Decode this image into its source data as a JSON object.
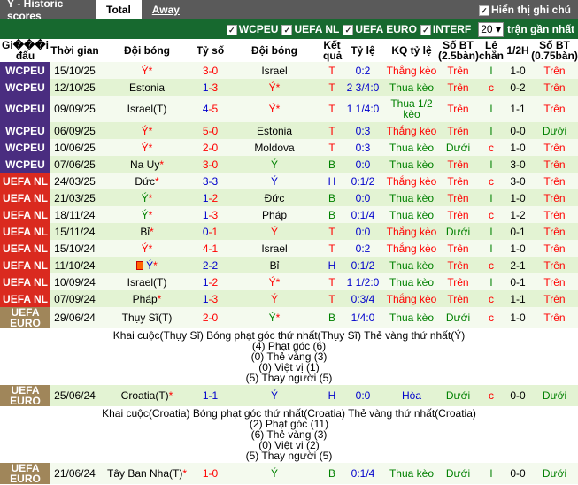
{
  "header": {
    "title": "Ý - Historic scores",
    "tabs": [
      "Total",
      "Away"
    ],
    "show_notes": "Hiển thị ghi chú"
  },
  "filters": {
    "leagues": [
      "WCPEU",
      "UEFA NL",
      "UEFA EURO",
      "INTERF"
    ],
    "count": "20",
    "count_suffix": "trận gần nhất"
  },
  "columns": [
    "Gi���i đấu",
    "Thời gian",
    "Đội bóng",
    "Tỷ số",
    "Đội bóng",
    "Kết quả",
    "Tỷ lệ",
    "KQ tỷ lệ",
    "Số BT (2.5bàn)",
    "Lẻ chẵn",
    "1/2H",
    "Số BT (0.75bàn)"
  ],
  "league_colors": {
    "WCPEU": "#4a2d80",
    "UEFA NL": "#da2a1f",
    "UEFA EURO": "#a0865a"
  },
  "rows": [
    {
      "lg": "WCPEU",
      "date": "15/10/25",
      "home": "Ý",
      "hs": "*",
      "hc": "red",
      "sh": "3",
      "sa": "0",
      "shc": "red",
      "sac": "red",
      "away": "Israel",
      "as": "",
      "ac": "blk",
      "res": "T",
      "hcp": "0:2",
      "kq": "Thắng kèo",
      "bt": "Trên",
      "lc": "l",
      "h1": "1-0",
      "bt2": "Trên"
    },
    {
      "lg": "WCPEU",
      "date": "12/10/25",
      "home": "Estonia",
      "hs": "",
      "hc": "blk",
      "sh": "1",
      "sa": "3",
      "shc": "blue",
      "sac": "red",
      "away": "Ý",
      "as": "*",
      "ac": "red",
      "res": "T",
      "hcp": "2 3/4:0",
      "kq": "Thua kèo",
      "bt": "Trên",
      "lc": "c",
      "h1": "0-2",
      "bt2": "Trên"
    },
    {
      "lg": "WCPEU",
      "date": "09/09/25",
      "home": "Israel(T)",
      "hs": "",
      "hc": "blk",
      "sh": "4",
      "sa": "5",
      "shc": "blue",
      "sac": "red",
      "away": "Ý",
      "as": "*",
      "ac": "red",
      "res": "T",
      "hcp": "1 1/4:0",
      "kq": "Thua 1/2 kèo",
      "bt": "Trên",
      "lc": "l",
      "h1": "1-1",
      "bt2": "Trên"
    },
    {
      "lg": "WCPEU",
      "date": "06/09/25",
      "home": "Ý",
      "hs": "*",
      "hc": "red",
      "sh": "5",
      "sa": "0",
      "shc": "red",
      "sac": "red",
      "away": "Estonia",
      "as": "",
      "ac": "blk",
      "res": "T",
      "hcp": "0:3",
      "kq": "Thắng kèo",
      "bt": "Trên",
      "lc": "l",
      "h1": "0-0",
      "bt2": "Dưới"
    },
    {
      "lg": "WCPEU",
      "date": "10/06/25",
      "home": "Ý",
      "hs": "*",
      "hc": "red",
      "sh": "2",
      "sa": "0",
      "shc": "red",
      "sac": "red",
      "away": "Moldova",
      "as": "",
      "ac": "blk",
      "res": "T",
      "hcp": "0:3",
      "kq": "Thua kèo",
      "bt": "Dưới",
      "lc": "c",
      "h1": "1-0",
      "bt2": "Trên"
    },
    {
      "lg": "WCPEU",
      "date": "07/06/25",
      "home": "Na Uy",
      "hs": "*",
      "hc": "blk",
      "sh": "3",
      "sa": "0",
      "shc": "red",
      "sac": "red",
      "away": "Ý",
      "as": "",
      "ac": "grn",
      "res": "B",
      "hcp": "0:0",
      "kq": "Thua kèo",
      "bt": "Trên",
      "lc": "l",
      "h1": "3-0",
      "bt2": "Trên"
    },
    {
      "lg": "UEFA NL",
      "date": "24/03/25",
      "home": "Đức",
      "hs": "*",
      "hc": "blk",
      "sh": "3",
      "sa": "3",
      "shc": "blue",
      "sac": "blue",
      "away": "Ý",
      "as": "",
      "ac": "blue",
      "res": "H",
      "hcp": "0:1/2",
      "kq": "Thắng kèo",
      "bt": "Trên",
      "lc": "c",
      "h1": "3-0",
      "bt2": "Trên"
    },
    {
      "lg": "UEFA NL",
      "date": "21/03/25",
      "home": "Ý",
      "hs": "*",
      "hc": "grn",
      "sh": "1",
      "sa": "2",
      "shc": "blue",
      "sac": "red",
      "away": "Đức",
      "as": "",
      "ac": "blk",
      "res": "B",
      "hcp": "0:0",
      "kq": "Thua kèo",
      "bt": "Trên",
      "lc": "l",
      "h1": "1-0",
      "bt2": "Trên"
    },
    {
      "lg": "UEFA NL",
      "date": "18/11/24",
      "home": "Ý",
      "hs": "*",
      "hc": "grn",
      "sh": "1",
      "sa": "3",
      "shc": "blue",
      "sac": "red",
      "away": "Pháp",
      "as": "",
      "ac": "blk",
      "res": "B",
      "hcp": "0:1/4",
      "kq": "Thua kèo",
      "bt": "Trên",
      "lc": "c",
      "h1": "1-2",
      "bt2": "Trên"
    },
    {
      "lg": "UEFA NL",
      "date": "15/11/24",
      "home": "Bỉ",
      "hs": "*",
      "hc": "blk",
      "sh": "0",
      "sa": "1",
      "shc": "blue",
      "sac": "red",
      "away": "Ý",
      "as": "",
      "ac": "red",
      "res": "T",
      "hcp": "0:0",
      "kq": "Thắng kèo",
      "bt": "Dưới",
      "lc": "l",
      "h1": "0-1",
      "bt2": "Trên"
    },
    {
      "lg": "UEFA NL",
      "date": "15/10/24",
      "home": "Ý",
      "hs": "*",
      "hc": "red",
      "sh": "4",
      "sa": "1",
      "shc": "red",
      "sac": "red",
      "away": "Israel",
      "as": "",
      "ac": "blk",
      "res": "T",
      "hcp": "0:2",
      "kq": "Thắng kèo",
      "bt": "Trên",
      "lc": "l",
      "h1": "1-0",
      "bt2": "Trên"
    },
    {
      "lg": "UEFA NL",
      "date": "11/10/24",
      "home": "Ý",
      "hs": "*",
      "hc": "blue",
      "card": true,
      "sh": "2",
      "sa": "2",
      "shc": "blue",
      "sac": "blue",
      "away": "Bỉ",
      "as": "",
      "ac": "blk",
      "res": "H",
      "hcp": "0:1/2",
      "kq": "Thua kèo",
      "bt": "Trên",
      "lc": "c",
      "h1": "2-1",
      "bt2": "Trên"
    },
    {
      "lg": "UEFA NL",
      "date": "10/09/24",
      "home": "Israel(T)",
      "hs": "",
      "hc": "blk",
      "sh": "1",
      "sa": "2",
      "shc": "blue",
      "sac": "red",
      "away": "Ý",
      "as": "*",
      "ac": "red",
      "res": "T",
      "hcp": "1 1/2:0",
      "kq": "Thua kèo",
      "bt": "Trên",
      "lc": "l",
      "h1": "0-1",
      "bt2": "Trên"
    },
    {
      "lg": "UEFA NL",
      "date": "07/09/24",
      "home": "Pháp",
      "hs": "*",
      "hc": "blk",
      "sh": "1",
      "sa": "3",
      "shc": "blue",
      "sac": "red",
      "away": "Ý",
      "as": "",
      "ac": "red",
      "res": "T",
      "hcp": "0:3/4",
      "kq": "Thắng kèo",
      "bt": "Trên",
      "lc": "c",
      "h1": "1-1",
      "bt2": "Trên"
    },
    {
      "lg": "UEFA EURO",
      "date": "29/06/24",
      "home": "Thụy Sĩ(T)",
      "hs": "",
      "hc": "blk",
      "sh": "2",
      "sa": "0",
      "shc": "red",
      "sac": "red",
      "away": "Ý",
      "as": "*",
      "ac": "grn",
      "res": "B",
      "hcp": "1/4:0",
      "kq": "Thua kèo",
      "bt": "Dưới",
      "lc": "c",
      "h1": "1-0",
      "bt2": "Trên",
      "details": [
        "Khai cuộc(Thụy Sĩ)  Bóng phạt góc thứ nhất(Thụy Sĩ)  Thẻ vàng thứ nhất(Ý)",
        "(4) Phạt góc (6)",
        "(0) Thẻ vàng (3)",
        "(0) Việt vị (1)",
        "(5) Thay người (5)"
      ]
    },
    {
      "lg": "UEFA EURO",
      "date": "25/06/24",
      "home": "Croatia(T)",
      "hs": "*",
      "hc": "blk",
      "sh": "1",
      "sa": "1",
      "shc": "blue",
      "sac": "blue",
      "away": "Ý",
      "as": "",
      "ac": "blue",
      "res": "H",
      "hcp": "0:0",
      "kq": "Hòa",
      "bt": "Dưới",
      "lc": "c",
      "h1": "0-0",
      "bt2": "Dưới",
      "details": [
        "Khai cuộc(Croatia)  Bóng phạt góc thứ nhất(Croatia)  Thẻ vàng thứ nhất(Croatia)",
        "(2) Phạt góc (11)",
        "(6) Thẻ vàng (3)",
        "(0) Việt vị (2)",
        "(5) Thay người (5)"
      ]
    },
    {
      "lg": "UEFA EURO",
      "date": "21/06/24",
      "home": "Tây Ban Nha(T)",
      "hs": "*",
      "hc": "blk",
      "sh": "1",
      "sa": "0",
      "shc": "red",
      "sac": "red",
      "away": "Ý",
      "as": "",
      "ac": "grn",
      "res": "B",
      "hcp": "0:1/4",
      "kq": "Thua kèo",
      "bt": "Dưới",
      "lc": "l",
      "h1": "0-0",
      "bt2": "Dưới"
    }
  ]
}
